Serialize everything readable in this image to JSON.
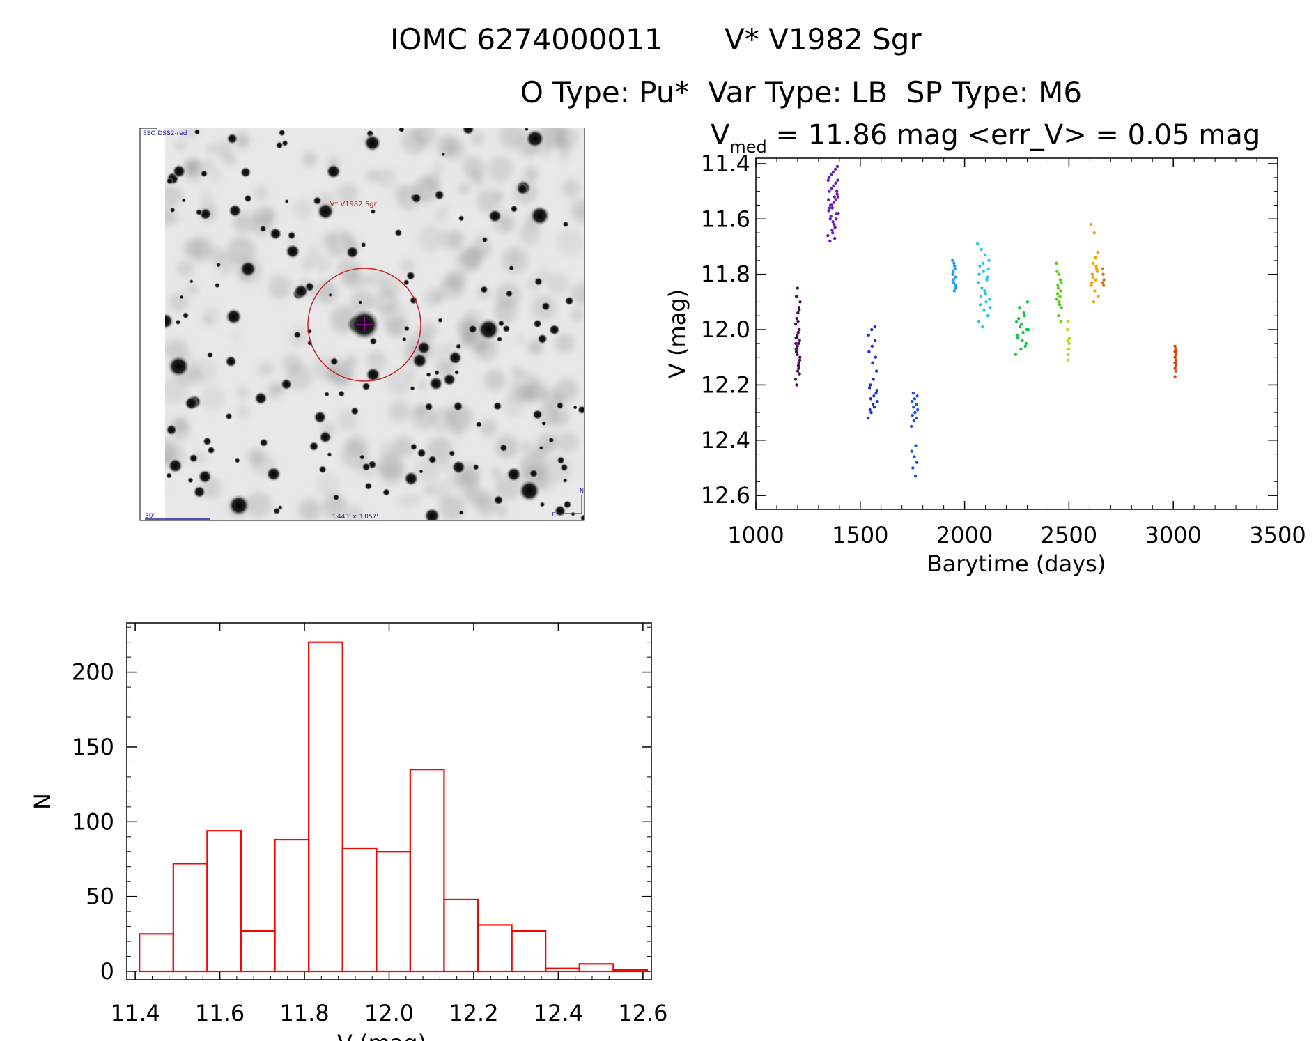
{
  "header": {
    "line1_id": "IOMC 6274000011",
    "line1_name": "V* V1982 Sgr",
    "line2": "O Type: Pu*  Var Type: LB  SP Type: M6"
  },
  "image_panel": {
    "survey_label": "ESO DSS2-red",
    "target_label": "V* V1982 Sgr",
    "scale_label": "30\"",
    "fov_label": "3.443' x 3.057'",
    "compass_n": "N",
    "compass_e": "E"
  },
  "chart_data": [
    {
      "type": "scatter",
      "title_prefix": "V",
      "title_sub": "med",
      "title_rest": " = 11.86 mag <err_V> = 0.05 mag",
      "xlabel": "Barytime (days)",
      "ylabel": "V (mag)",
      "xlim": [
        1000,
        3500
      ],
      "ylim": [
        12.65,
        11.38
      ],
      "xticks": [
        "1000",
        "1500",
        "2000",
        "2500",
        "3000",
        "3500"
      ],
      "yticks": [
        "11.4",
        "11.6",
        "11.8",
        "12.0",
        "12.2",
        "12.4",
        "12.6"
      ],
      "series": [
        {
          "name": "g1",
          "color": "#4a0a55",
          "x_range": [
            1190,
            1212
          ],
          "values": [
            12.18,
            12.2,
            12.15,
            12.12,
            12.1,
            12.08,
            12.06,
            12.05,
            12.04,
            12.03,
            12.02,
            12.01,
            12.0,
            11.98,
            11.96,
            11.94,
            11.92,
            11.9,
            11.88,
            11.85,
            12.14,
            12.11,
            12.07,
            12.09,
            12.13,
            12.16,
            12.05,
            12.03,
            11.97,
            11.93
          ]
        },
        {
          "name": "g2",
          "color": "#6a18c0",
          "x_range": [
            1345,
            1395
          ],
          "values": [
            11.66,
            11.68,
            11.64,
            11.62,
            11.6,
            11.58,
            11.56,
            11.55,
            11.54,
            11.53,
            11.52,
            11.5,
            11.49,
            11.48,
            11.47,
            11.46,
            11.45,
            11.44,
            11.43,
            11.42,
            11.41,
            11.57,
            11.59,
            11.61,
            11.63,
            11.51,
            11.53,
            11.55,
            11.65,
            11.67,
            11.5,
            11.46,
            11.6,
            11.56,
            11.52,
            11.58
          ]
        },
        {
          "name": "g3",
          "color": "#2030d0",
          "x_range": [
            1538,
            1582
          ],
          "values": [
            12.32,
            12.3,
            12.28,
            12.26,
            12.25,
            12.24,
            12.22,
            12.2,
            12.18,
            12.15,
            12.29,
            12.27,
            12.23,
            12.21,
            12.12,
            12.1,
            12.08,
            12.06,
            12.04,
            12.02,
            12.0,
            11.99
          ]
        },
        {
          "name": "g4",
          "color": "#1a50e0",
          "x_range": [
            1745,
            1775
          ],
          "values": [
            12.35,
            12.33,
            12.32,
            12.31,
            12.3,
            12.29,
            12.28,
            12.27,
            12.26,
            12.25,
            12.24,
            12.23,
            12.42,
            12.44,
            12.46,
            12.48,
            12.5,
            12.53
          ]
        },
        {
          "name": "g5",
          "color": "#1a9af0",
          "x_range": [
            1942,
            1958
          ],
          "values": [
            11.75,
            11.77,
            11.79,
            11.81,
            11.83,
            11.85,
            11.86,
            11.8,
            11.78,
            11.82,
            11.84,
            11.76
          ]
        },
        {
          "name": "g6",
          "color": "#20c8f0",
          "x_range": [
            2062,
            2122
          ],
          "values": [
            11.69,
            11.71,
            11.73,
            11.75,
            11.77,
            11.79,
            11.81,
            11.83,
            11.85,
            11.87,
            11.89,
            11.91,
            11.93,
            11.95,
            11.97,
            11.99,
            11.9,
            11.92,
            11.88,
            11.86,
            11.78,
            11.8,
            11.76,
            11.82
          ]
        },
        {
          "name": "g7",
          "color": "#10c840",
          "x_range": [
            2245,
            2305
          ],
          "values": [
            12.09,
            12.07,
            12.05,
            12.03,
            12.01,
            12.0,
            11.99,
            12.06,
            12.02,
            12.04,
            11.9,
            11.92,
            11.95,
            11.97,
            11.98,
            12.0,
            11.96,
            11.94
          ]
        },
        {
          "name": "g8",
          "color": "#50d010",
          "x_range": [
            2440,
            2465
          ],
          "values": [
            11.76,
            11.8,
            11.83,
            11.85,
            11.86,
            11.87,
            11.88,
            11.89,
            11.9,
            11.92,
            11.95,
            11.97,
            11.84,
            11.82,
            11.79,
            11.91
          ]
        },
        {
          "name": "g9",
          "color": "#b8d800",
          "x_range": [
            2492,
            2502
          ],
          "values": [
            12.0,
            12.03,
            12.05,
            12.07,
            12.09,
            12.11,
            11.97,
            12.04
          ]
        },
        {
          "name": "g10",
          "color": "#f0a000",
          "x_range": [
            2605,
            2640
          ],
          "values": [
            11.62,
            11.65,
            11.72,
            11.76,
            11.78,
            11.8,
            11.82,
            11.84,
            11.86,
            11.88,
            11.9,
            11.79,
            11.81,
            11.77,
            11.83,
            11.74
          ]
        },
        {
          "name": "g11",
          "color": "#e87010",
          "x_range": [
            2660,
            2668
          ],
          "values": [
            11.78,
            11.8,
            11.82,
            11.83,
            11.84
          ]
        },
        {
          "name": "g12",
          "color": "#e84000",
          "x_range": [
            3008,
            3016
          ],
          "values": [
            12.06,
            12.07,
            12.08,
            12.09,
            12.1,
            12.11,
            12.12,
            12.13,
            12.14,
            12.15,
            12.17,
            12.08,
            12.1,
            12.12
          ]
        }
      ]
    },
    {
      "type": "bar",
      "title": "",
      "xlabel": "V (mag)",
      "ylabel": "N",
      "xlim": [
        11.38,
        12.62
      ],
      "ylim": [
        0,
        232
      ],
      "xticks": [
        "11.4",
        "11.6",
        "11.8",
        "12.0",
        "12.2",
        "12.4",
        "12.6"
      ],
      "yticks": [
        "0",
        "50",
        "100",
        "150",
        "200"
      ],
      "bin_edges": [
        11.41,
        11.49,
        11.57,
        11.65,
        11.73,
        11.81,
        11.89,
        11.97,
        12.05,
        12.13,
        12.21,
        12.29,
        12.37,
        12.45,
        12.53,
        12.61
      ],
      "values": [
        25,
        72,
        94,
        27,
        88,
        220,
        82,
        80,
        135,
        48,
        31,
        27,
        2,
        5,
        1
      ],
      "color": "#ff0000"
    }
  ]
}
